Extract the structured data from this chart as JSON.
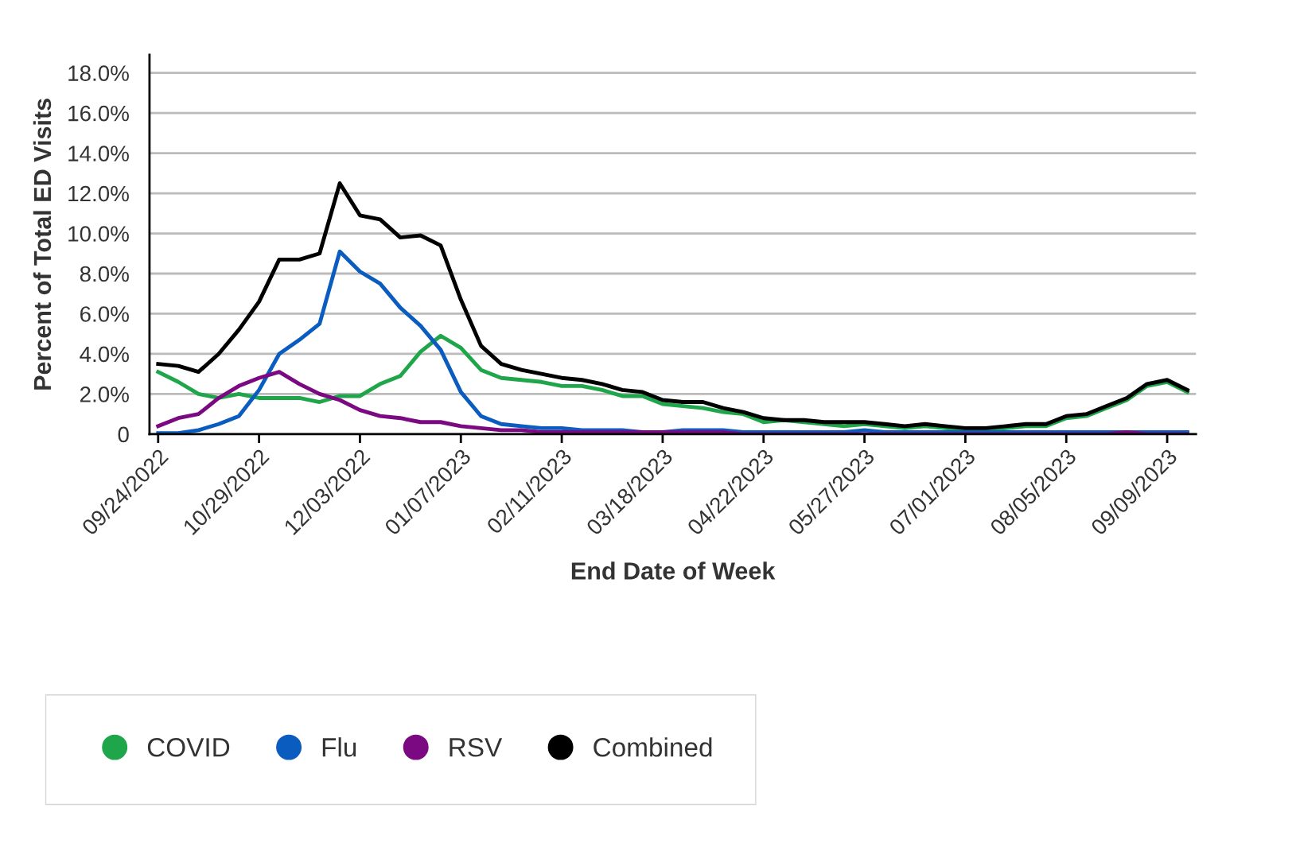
{
  "chart_data": {
    "type": "line",
    "xlabel": "End Date of Week",
    "ylabel": "Percent of Total ED Visits",
    "x": [
      "2022-09-24",
      "2022-10-01",
      "2022-10-08",
      "2022-10-15",
      "2022-10-22",
      "2022-10-29",
      "2022-11-05",
      "2022-11-12",
      "2022-11-19",
      "2022-11-26",
      "2022-12-03",
      "2022-12-10",
      "2022-12-17",
      "2022-12-24",
      "2022-12-31",
      "2023-01-07",
      "2023-01-14",
      "2023-01-21",
      "2023-01-28",
      "2023-02-04",
      "2023-02-11",
      "2023-02-18",
      "2023-02-25",
      "2023-03-04",
      "2023-03-11",
      "2023-03-18",
      "2023-03-25",
      "2023-04-01",
      "2023-04-08",
      "2023-04-15",
      "2023-04-22",
      "2023-04-29",
      "2023-05-06",
      "2023-05-13",
      "2023-05-20",
      "2023-05-27",
      "2023-06-03",
      "2023-06-10",
      "2023-06-17",
      "2023-06-24",
      "2023-07-01",
      "2023-07-08",
      "2023-07-15",
      "2023-07-22",
      "2023-07-29",
      "2023-08-05",
      "2023-08-12",
      "2023-08-19",
      "2023-08-26",
      "2023-09-02",
      "2023-09-09",
      "2023-09-16"
    ],
    "ylim": [
      0,
      18.9
    ],
    "yticks": [
      0,
      {
        "value": 2,
        "label": "2.0%"
      },
      {
        "value": 4,
        "label": "4.0%"
      },
      {
        "value": 6,
        "label": "6.0%"
      },
      {
        "value": 8,
        "label": "8.0%"
      },
      {
        "value": 10,
        "label": "10.0%"
      },
      {
        "value": 12,
        "label": "12.0%"
      },
      {
        "value": 14,
        "label": "14.0%"
      },
      {
        "value": 16,
        "label": "16.0%"
      },
      {
        "value": 18,
        "label": "18.0%"
      }
    ],
    "xlim": [
      "2022-09-21",
      "2023-09-19"
    ],
    "xticks": [
      {
        "value": "2022-09-24",
        "label": "09/24/2022"
      },
      {
        "value": "2022-10-29",
        "label": "10/29/2022"
      },
      {
        "value": "2022-12-03",
        "label": "12/03/2022"
      },
      {
        "value": "2023-01-07",
        "label": "01/07/2023"
      },
      {
        "value": "2023-02-11",
        "label": "02/11/2023"
      },
      {
        "value": "2023-03-18",
        "label": "03/18/2023"
      },
      {
        "value": "2023-04-22",
        "label": "04/22/2023"
      },
      {
        "value": "2023-05-27",
        "label": "05/27/2023"
      },
      {
        "value": "2023-07-01",
        "label": "07/01/2023"
      },
      {
        "value": "2023-08-05",
        "label": "08/05/2023"
      },
      {
        "value": "2023-09-09",
        "label": "09/09/2023"
      }
    ],
    "grid": "y",
    "legend": "bottom",
    "marker": "none",
    "line_style": "solid",
    "series": [
      {
        "name": "COVID",
        "color": "#1fa64a",
        "values": [
          3.1,
          2.6,
          2.0,
          1.8,
          2.0,
          1.8,
          1.8,
          1.8,
          1.6,
          1.9,
          1.9,
          2.5,
          2.9,
          4.1,
          4.9,
          4.3,
          3.2,
          2.8,
          2.7,
          2.6,
          2.4,
          2.4,
          2.2,
          1.9,
          1.9,
          1.5,
          1.4,
          1.3,
          1.1,
          1.0,
          0.6,
          0.7,
          0.6,
          0.5,
          0.4,
          0.5,
          0.4,
          0.3,
          0.4,
          0.3,
          0.2,
          0.2,
          0.3,
          0.4,
          0.4,
          0.8,
          0.9,
          1.3,
          1.7,
          2.4,
          2.6,
          2.1
        ]
      },
      {
        "name": "Flu",
        "color": "#0b5cbf",
        "values": [
          0.05,
          0.05,
          0.2,
          0.5,
          0.9,
          2.2,
          4.0,
          4.7,
          5.5,
          9.1,
          8.1,
          7.5,
          6.3,
          5.4,
          4.2,
          2.1,
          0.9,
          0.5,
          0.4,
          0.3,
          0.3,
          0.2,
          0.2,
          0.2,
          0.1,
          0.1,
          0.2,
          0.2,
          0.2,
          0.1,
          0.1,
          0.1,
          0.1,
          0.1,
          0.1,
          0.2,
          0.1,
          0.1,
          0.1,
          0.1,
          0.1,
          0.1,
          0.1,
          0.1,
          0.1,
          0.1,
          0.1,
          0.1,
          0.1,
          0.1,
          0.1,
          0.1
        ]
      },
      {
        "name": "RSV",
        "color": "#7b0a82",
        "values": [
          0.4,
          0.8,
          1.0,
          1.8,
          2.4,
          2.8,
          3.1,
          2.5,
          2.0,
          1.7,
          1.2,
          0.9,
          0.8,
          0.6,
          0.6,
          0.4,
          0.3,
          0.2,
          0.2,
          0.1,
          0.1,
          0.1,
          0.1,
          0.1,
          0.1,
          0.1,
          0.1,
          0.1,
          0.1,
          0,
          0,
          0,
          0,
          0,
          0,
          0,
          0,
          0,
          0,
          0,
          0,
          0,
          0,
          0,
          0,
          0,
          0,
          0,
          0.1,
          0,
          0,
          0
        ]
      },
      {
        "name": "Combined",
        "color": "#000000",
        "values": [
          3.5,
          3.4,
          3.1,
          4.0,
          5.2,
          6.6,
          8.7,
          8.7,
          9.0,
          12.5,
          10.9,
          10.7,
          9.8,
          9.9,
          9.4,
          6.7,
          4.4,
          3.5,
          3.2,
          3.0,
          2.8,
          2.7,
          2.5,
          2.2,
          2.1,
          1.7,
          1.6,
          1.6,
          1.3,
          1.1,
          0.8,
          0.7,
          0.7,
          0.6,
          0.6,
          0.6,
          0.5,
          0.4,
          0.5,
          0.4,
          0.3,
          0.3,
          0.4,
          0.5,
          0.5,
          0.9,
          1.0,
          1.4,
          1.8,
          2.5,
          2.7,
          2.2
        ]
      }
    ]
  }
}
